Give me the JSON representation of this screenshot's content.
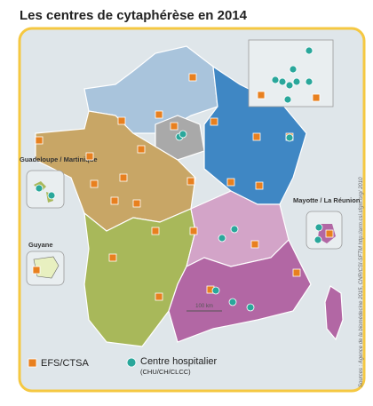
{
  "title": "Les centres de cytaphérèse en 2014",
  "insets": {
    "antilles": "Guadeloupe / Martinique",
    "guyane": "Guyane",
    "ocean_indien": "Mayotte / La Réunion"
  },
  "scale": "100 km",
  "legend": {
    "efs": "EFS/CTSA",
    "hospital": "Centre hospitalier",
    "hospital_detail": "(CHU/CH/CLCC)"
  },
  "source": "Sources : Agence de la biomédecine 2015, CNR/CSI-SFTM http://arm.csi.sfgm.org/ 2010"
}
